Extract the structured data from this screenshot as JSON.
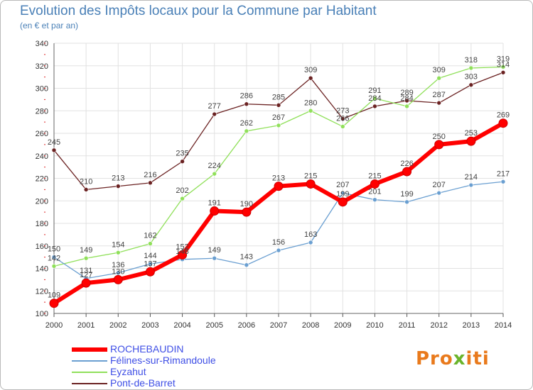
{
  "title": "Evolution des Impôts locaux pour la Commune par Habitant",
  "subtitle": "(en € et par an)",
  "logo": {
    "part1": "Pro",
    "part2": "x",
    "part3": "iti"
  },
  "colors": {
    "ROCHEBAUDIN": "#ff0000",
    "Félines-sur-Rimandoule": "#6a9fd1",
    "Eyzahut": "#90e05a",
    "Pont-de-Barret": "#6b2222"
  },
  "chart_data": {
    "type": "line",
    "x": [
      2000,
      2001,
      2002,
      2003,
      2004,
      2005,
      2006,
      2007,
      2008,
      2009,
      2010,
      2011,
      2012,
      2013,
      2014
    ],
    "ylim": [
      100,
      340
    ],
    "yticks": [
      100,
      120,
      140,
      160,
      180,
      200,
      220,
      240,
      260,
      280,
      300,
      320,
      340
    ],
    "grid": true,
    "legend_position": "bottom-left",
    "series": [
      {
        "name": "ROCHEBAUDIN",
        "values": [
          109,
          127,
          130,
          137,
          152,
          191,
          190,
          213,
          215,
          199,
          215,
          226,
          250,
          253,
          269
        ]
      },
      {
        "name": "Félines-sur-Rimandoule",
        "values": [
          150,
          131,
          136,
          144,
          148,
          149,
          143,
          156,
          163,
          207,
          201,
          199,
          207,
          214,
          217
        ]
      },
      {
        "name": "Eyzahut",
        "values": [
          142,
          149,
          154,
          162,
          202,
          224,
          262,
          267,
          280,
          266,
          291,
          284,
          309,
          318,
          319
        ]
      },
      {
        "name": "Pont-de-Barret",
        "values": [
          245,
          210,
          213,
          216,
          235,
          277,
          286,
          285,
          309,
          273,
          284,
          289,
          287,
          303,
          314
        ]
      }
    ]
  }
}
